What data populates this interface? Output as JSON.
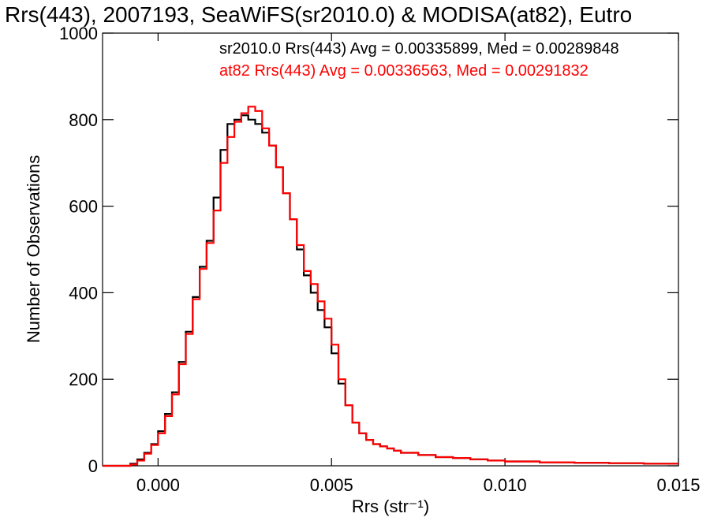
{
  "chart_data": {
    "type": "line",
    "title": "Rrs(443), 2007193, SeaWiFS(sr2010.0) & MODISA(at82), Eutro",
    "xlabel": "Rrs (str⁻¹)",
    "ylabel": "Number of Observations",
    "xlim": [
      -0.0016,
      0.015
    ],
    "ylim": [
      0,
      1000
    ],
    "x_ticks": [
      0.0,
      0.005,
      0.01,
      0.015
    ],
    "x_tick_labels": [
      "0.000",
      "0.005",
      "0.010",
      "0.015"
    ],
    "y_ticks": [
      0,
      200,
      400,
      600,
      800,
      1000
    ],
    "y_tick_labels": [
      "0",
      "200",
      "400",
      "600",
      "800",
      "1000"
    ],
    "legend_placement": "top",
    "x": [
      -0.0016,
      -0.001,
      -0.0008,
      -0.0006,
      -0.0004,
      -0.0002,
      0.0,
      0.0002,
      0.0004,
      0.0006,
      0.0008,
      0.001,
      0.0012,
      0.0014,
      0.0016,
      0.0018,
      0.002,
      0.0022,
      0.0024,
      0.0026,
      0.0028,
      0.003,
      0.0032,
      0.0034,
      0.0036,
      0.0038,
      0.004,
      0.0042,
      0.0044,
      0.0046,
      0.0048,
      0.005,
      0.0052,
      0.0054,
      0.0056,
      0.0058,
      0.006,
      0.0062,
      0.0064,
      0.0066,
      0.0068,
      0.007,
      0.0075,
      0.008,
      0.0085,
      0.009,
      0.0095,
      0.01,
      0.011,
      0.012,
      0.013,
      0.014,
      0.015
    ],
    "series": [
      {
        "name": "sr2010.0 Rrs(443) Avg = 0.00335899, Med = 0.00289848",
        "color": "#000000",
        "values": [
          0,
          0,
          5,
          15,
          30,
          50,
          80,
          120,
          170,
          240,
          310,
          390,
          460,
          520,
          620,
          730,
          790,
          800,
          810,
          800,
          790,
          770,
          740,
          690,
          630,
          570,
          500,
          440,
          400,
          360,
          320,
          260,
          190,
          140,
          100,
          75,
          60,
          50,
          45,
          40,
          35,
          30,
          25,
          20,
          18,
          15,
          12,
          10,
          8,
          7,
          6,
          5,
          5
        ]
      },
      {
        "name": "at82 Rrs(443) Avg = 0.00336563, Med = 0.00291832",
        "color": "#ff0000",
        "values": [
          0,
          0,
          3,
          12,
          28,
          48,
          75,
          115,
          165,
          235,
          305,
          385,
          455,
          515,
          590,
          700,
          760,
          795,
          815,
          830,
          820,
          780,
          740,
          690,
          630,
          570,
          510,
          450,
          420,
          380,
          340,
          280,
          200,
          140,
          100,
          75,
          60,
          50,
          45,
          40,
          35,
          30,
          25,
          20,
          18,
          15,
          12,
          10,
          8,
          7,
          6,
          5,
          5
        ]
      }
    ]
  }
}
